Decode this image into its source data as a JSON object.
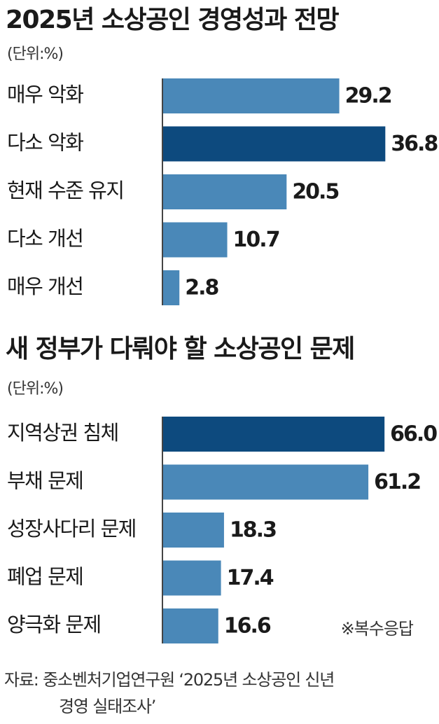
{
  "chart_data": [
    {
      "type": "bar",
      "orientation": "horizontal",
      "title": "2025년 소상공인 경영성과 전망",
      "subtitle": "(단위:%)",
      "categories": [
        "매우 악화",
        "다소 악화",
        "현재 수준 유지",
        "다소 개선",
        "매우 개선"
      ],
      "values": [
        29.2,
        36.8,
        20.5,
        10.7,
        2.8
      ],
      "colors": [
        "#4a88b8",
        "#0d4a7e",
        "#4a88b8",
        "#4a88b8",
        "#4a88b8"
      ],
      "xlim": [
        0,
        40
      ]
    },
    {
      "type": "bar",
      "orientation": "horizontal",
      "title": "새 정부가 다뤄야 할 소상공인 문제",
      "subtitle": "(단위:%)",
      "categories": [
        "지역상권 침체",
        "부채 문제",
        "성장사다리 문제",
        "폐업 문제",
        "양극화 문제"
      ],
      "values": [
        66.0,
        61.2,
        18.3,
        17.4,
        16.6
      ],
      "value_labels": [
        "66.0",
        "61.2",
        "18.3",
        "17.4",
        "16.6"
      ],
      "colors": [
        "#0d4a7e",
        "#4a88b8",
        "#4a88b8",
        "#4a88b8",
        "#4a88b8"
      ],
      "xlim": [
        0,
        72
      ],
      "note": "※복수응답"
    }
  ],
  "source": {
    "line1": "자료: 중소벤처기업연구원 ‘2025년 소상공인 신년",
    "line2": "경영 실태조사’"
  }
}
